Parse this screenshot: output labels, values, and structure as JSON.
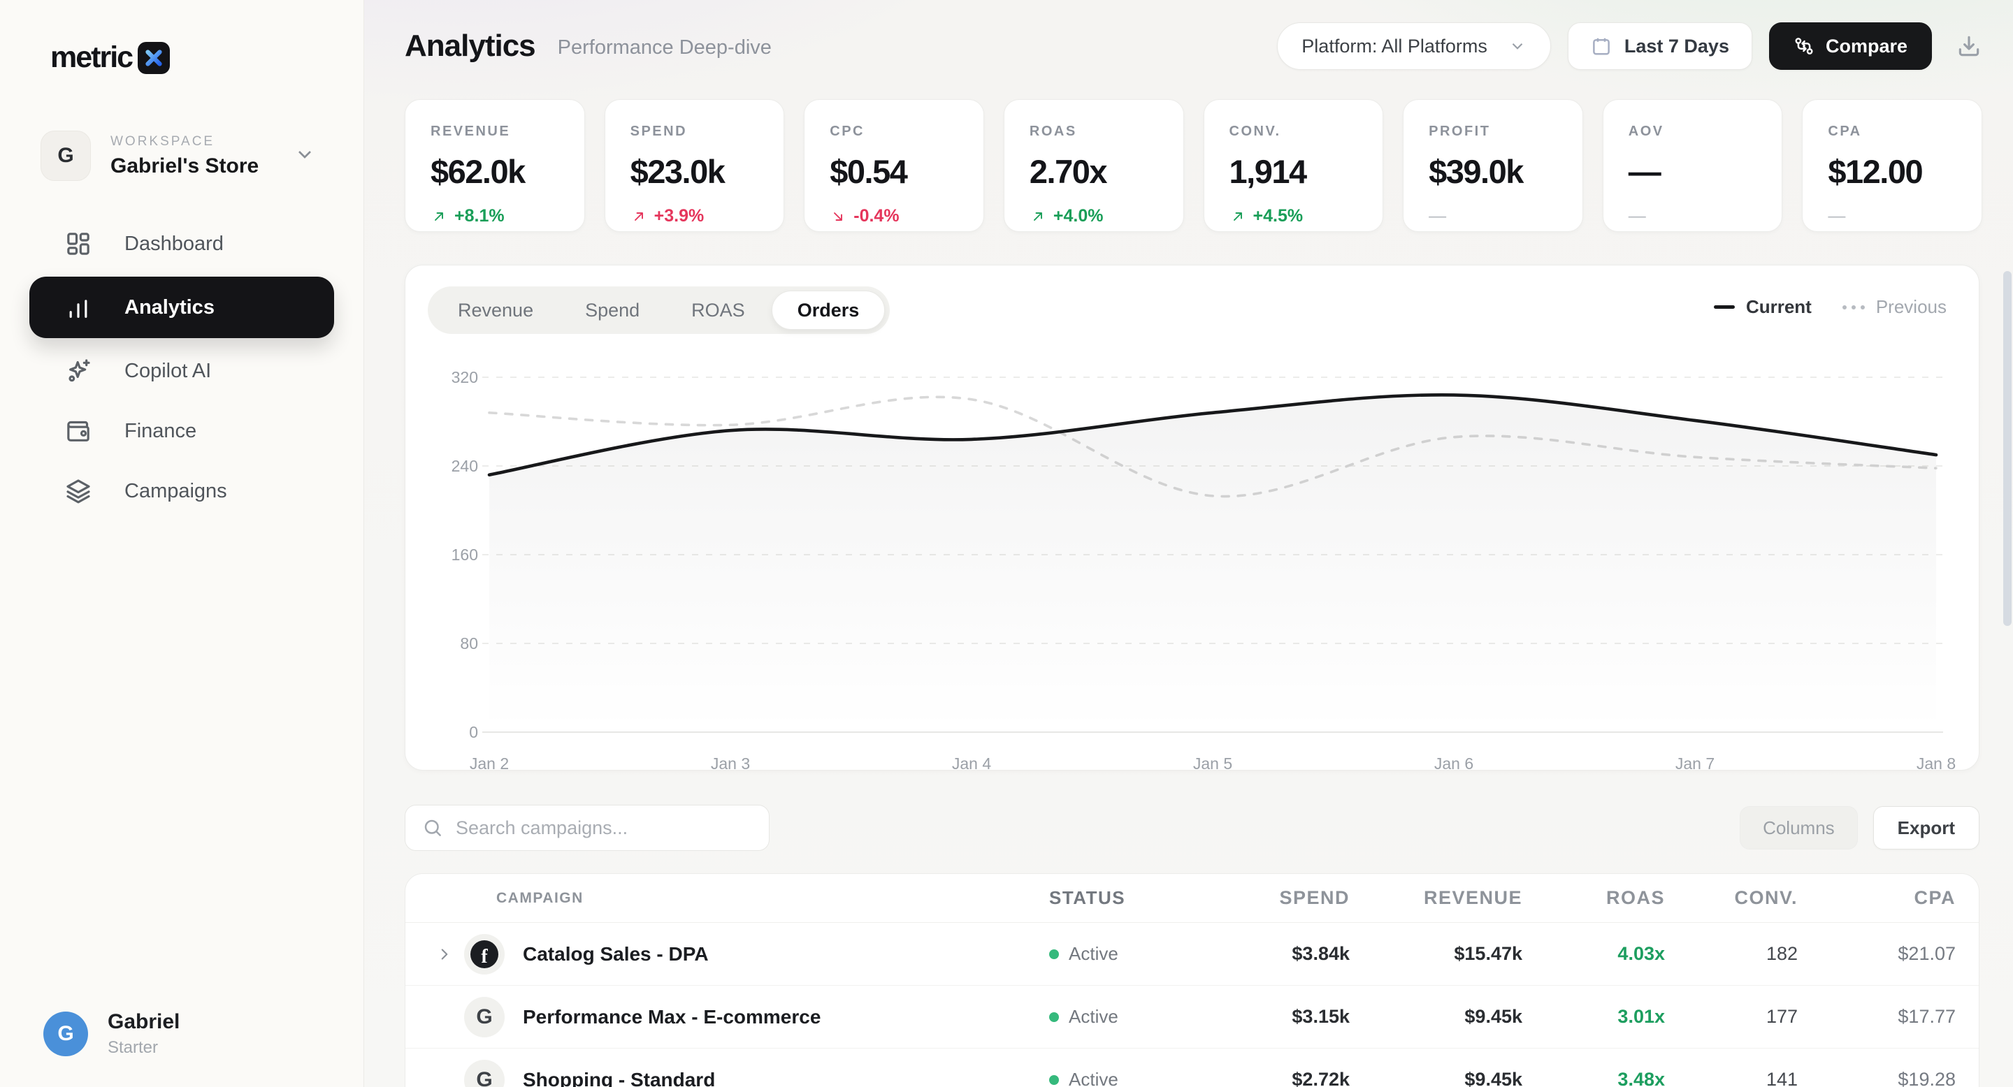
{
  "brand": {
    "name": "metric",
    "mark": "x-logo"
  },
  "workspace": {
    "label": "WORKSPACE",
    "name": "Gabriel's Store",
    "avatar_letter": "G"
  },
  "nav": [
    {
      "label": "Dashboard",
      "icon": "dashboard",
      "active": false
    },
    {
      "label": "Analytics",
      "icon": "bar-chart",
      "active": true
    },
    {
      "label": "Copilot AI",
      "icon": "sparkles",
      "active": false
    },
    {
      "label": "Finance",
      "icon": "wallet",
      "active": false
    },
    {
      "label": "Campaigns",
      "icon": "layers",
      "active": false
    }
  ],
  "user": {
    "name": "Gabriel",
    "plan": "Starter",
    "avatar_letter": "G",
    "avatar_color": "#4a90d9"
  },
  "header": {
    "title": "Analytics",
    "subtitle": "Performance Deep-dive",
    "platform_filter": "Platform: All Platforms",
    "date_range": "Last 7 Days",
    "compare_label": "Compare"
  },
  "kpis": [
    {
      "label": "REVENUE",
      "value": "$62.0k",
      "delta": "+8.1%",
      "direction": "up",
      "tone": "positive"
    },
    {
      "label": "SPEND",
      "value": "$23.0k",
      "delta": "+3.9%",
      "direction": "up",
      "tone": "negative"
    },
    {
      "label": "CPC",
      "value": "$0.54",
      "delta": "-0.4%",
      "direction": "down",
      "tone": "negative"
    },
    {
      "label": "ROAS",
      "value": "2.70x",
      "delta": "+4.0%",
      "direction": "up",
      "tone": "positive"
    },
    {
      "label": "CONV.",
      "value": "1,914",
      "delta": "+4.5%",
      "direction": "up",
      "tone": "positive"
    },
    {
      "label": "PROFIT",
      "value": "$39.0k",
      "delta": "—",
      "direction": "none",
      "tone": "neutral"
    },
    {
      "label": "AOV",
      "value": "—",
      "delta": "—",
      "direction": "none",
      "tone": "neutral"
    },
    {
      "label": "CPA",
      "value": "$12.00",
      "delta": "—",
      "direction": "none",
      "tone": "neutral"
    }
  ],
  "chart_tabs": [
    {
      "label": "Revenue",
      "active": false
    },
    {
      "label": "Spend",
      "active": false
    },
    {
      "label": "ROAS",
      "active": false
    },
    {
      "label": "Orders",
      "active": true
    }
  ],
  "legend": {
    "current": "Current",
    "previous": "Previous"
  },
  "chart_data": {
    "type": "line",
    "title": "Orders — current vs previous period",
    "x": [
      "Jan 2",
      "Jan 3",
      "Jan 4",
      "Jan 5",
      "Jan 6",
      "Jan 7",
      "Jan 8"
    ],
    "series": [
      {
        "name": "Current",
        "style": "solid",
        "color": "#17181a",
        "fill": true,
        "values": [
          232,
          272,
          264,
          288,
          304,
          281,
          250
        ]
      },
      {
        "name": "Previous",
        "style": "dashed",
        "color": "#d8d8d8",
        "fill": false,
        "values": [
          288,
          277,
          300,
          213,
          266,
          248,
          238
        ]
      }
    ],
    "ylim": [
      0,
      320
    ],
    "yticks": [
      320,
      240,
      160,
      80,
      0
    ],
    "grid": "horizontal-dashed",
    "legend_position": "top-right",
    "xlabel": "",
    "ylabel": ""
  },
  "toolbar": {
    "search_placeholder": "Search campaigns...",
    "columns_label": "Columns",
    "export_label": "Export"
  },
  "table": {
    "columns": [
      {
        "label": "CAMPAIGN",
        "align": "left"
      },
      {
        "label": "STATUS",
        "align": "left"
      },
      {
        "label": "SPEND",
        "align": "right"
      },
      {
        "label": "REVENUE",
        "align": "right"
      },
      {
        "label": "ROAS",
        "align": "right"
      },
      {
        "label": "CONV.",
        "align": "right"
      },
      {
        "label": "CPA",
        "align": "right"
      }
    ],
    "rows": [
      {
        "expandable": true,
        "platform": "facebook",
        "name": "Catalog Sales - DPA",
        "status": "Active",
        "spend": "$3.84k",
        "revenue": "$15.47k",
        "roas": "4.03x",
        "conv": "182",
        "cpa": "$21.07"
      },
      {
        "expandable": false,
        "platform": "google",
        "name": "Performance Max - E-commerce",
        "status": "Active",
        "spend": "$3.15k",
        "revenue": "$9.45k",
        "roas": "3.01x",
        "conv": "177",
        "cpa": "$17.77"
      },
      {
        "expandable": false,
        "platform": "google",
        "name": "Shopping - Standard",
        "status": "Active",
        "spend": "$2.72k",
        "revenue": "$9.45k",
        "roas": "3.48x",
        "conv": "141",
        "cpa": "$19.28"
      }
    ]
  },
  "colors": {
    "positive": "#1a9e58",
    "negative": "#e5365c",
    "status_active": "#35b97c",
    "roas_good": "#1d9e5f",
    "accent_dark": "#17181a",
    "logo_gradient_start": "#7cc6f7",
    "logo_gradient_end": "#2563eb"
  }
}
